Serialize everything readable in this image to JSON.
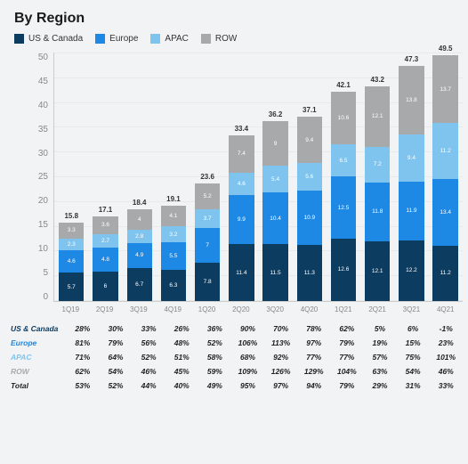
{
  "title": "By Region",
  "legend": [
    {
      "key": "us_canada",
      "label": "US & Canada",
      "color": "#0d3c61"
    },
    {
      "key": "europe",
      "label": "Europe",
      "color": "#1e88e5"
    },
    {
      "key": "apac",
      "label": "APAC",
      "color": "#7fc4ee"
    },
    {
      "key": "row",
      "label": "ROW",
      "color": "#a8a9ab"
    }
  ],
  "chart": {
    "type": "stacked-bar",
    "y_max": 50,
    "y_tick_step": 5,
    "background_color": "#f2f3f5",
    "grid_color": "rgba(0,0,0,0.04)",
    "categories": [
      "1Q19",
      "2Q19",
      "3Q19",
      "4Q19",
      "1Q20",
      "2Q20",
      "3Q20",
      "4Q20",
      "1Q21",
      "2Q21",
      "3Q21",
      "4Q21"
    ],
    "series_order": [
      "us_canada",
      "europe",
      "apac",
      "row"
    ],
    "colors": {
      "us_canada": "#0d3c61",
      "europe": "#1e88e5",
      "apac": "#7fc4ee",
      "row": "#a8a9ab"
    },
    "bars": [
      {
        "total": 15.8,
        "us_canada": 5.7,
        "europe": 4.6,
        "apac": 2.3,
        "row": 3.3
      },
      {
        "total": 17.1,
        "us_canada": 6.0,
        "europe": 4.8,
        "apac": 2.7,
        "row": 3.6
      },
      {
        "total": 18.4,
        "us_canada": 6.7,
        "europe": 4.9,
        "apac": 2.8,
        "row": 4.0
      },
      {
        "total": 19.1,
        "us_canada": 6.3,
        "europe": 5.5,
        "apac": 3.2,
        "row": 4.1
      },
      {
        "total": 23.6,
        "us_canada": 7.8,
        "europe": 7.0,
        "apac": 3.7,
        "row": 5.2
      },
      {
        "total": 33.4,
        "us_canada": 11.4,
        "europe": 9.9,
        "apac": 4.6,
        "row": 7.4
      },
      {
        "total": 36.2,
        "us_canada": 11.5,
        "europe": 10.4,
        "apac": 5.4,
        "row": 9.0
      },
      {
        "total": 37.1,
        "us_canada": 11.3,
        "europe": 10.9,
        "apac": 5.6,
        "row": 9.4
      },
      {
        "total": 42.1,
        "us_canada": 12.6,
        "europe": 12.5,
        "apac": 6.5,
        "row": 10.6
      },
      {
        "total": 43.2,
        "us_canada": 12.1,
        "europe": 11.8,
        "apac": 7.2,
        "row": 12.1
      },
      {
        "total": 47.3,
        "us_canada": 12.2,
        "europe": 11.9,
        "apac": 9.4,
        "row": 13.8
      },
      {
        "total": 49.5,
        "us_canada": 11.2,
        "europe": 13.4,
        "apac": 11.2,
        "row": 13.7
      }
    ]
  },
  "table": {
    "rows": [
      {
        "key": "us_canada",
        "label": "US & Canada",
        "label_color": "#0d3c61",
        "values": [
          "28%",
          "30%",
          "33%",
          "26%",
          "36%",
          "90%",
          "70%",
          "78%",
          "62%",
          "5%",
          "6%",
          "-1%"
        ]
      },
      {
        "key": "europe",
        "label": "Europe",
        "label_color": "#1e88e5",
        "values": [
          "81%",
          "79%",
          "56%",
          "48%",
          "52%",
          "106%",
          "113%",
          "97%",
          "79%",
          "19%",
          "15%",
          "23%"
        ]
      },
      {
        "key": "apac",
        "label": "APAC",
        "label_color": "#7fc4ee",
        "values": [
          "71%",
          "64%",
          "52%",
          "51%",
          "58%",
          "68%",
          "92%",
          "77%",
          "77%",
          "57%",
          "75%",
          "101%"
        ]
      },
      {
        "key": "row",
        "label": "ROW",
        "label_color": "#a8a9ab",
        "values": [
          "62%",
          "54%",
          "46%",
          "45%",
          "59%",
          "109%",
          "126%",
          "129%",
          "104%",
          "63%",
          "54%",
          "46%"
        ]
      },
      {
        "key": "total",
        "label": "Total",
        "label_color": "#222",
        "values": [
          "53%",
          "52%",
          "44%",
          "40%",
          "49%",
          "95%",
          "97%",
          "94%",
          "79%",
          "29%",
          "31%",
          "33%"
        ]
      }
    ]
  }
}
